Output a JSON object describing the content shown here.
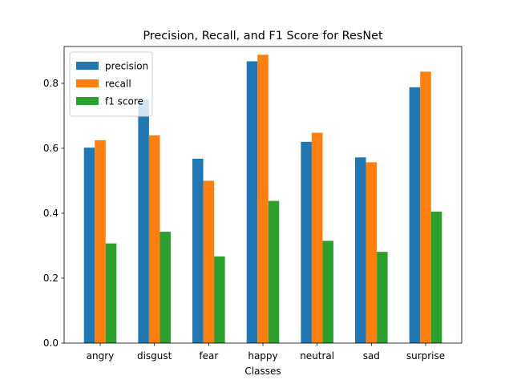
{
  "chart_data": {
    "type": "bar",
    "title": "Precision, Recall, and F1 Score for ResNet",
    "xlabel": "Classes",
    "ylabel": "",
    "categories": [
      "angry",
      "disgust",
      "fear",
      "happy",
      "neutral",
      "sad",
      "surprise"
    ],
    "series": [
      {
        "name": "precision",
        "color": "#1f77b4",
        "values": [
          0.602,
          0.75,
          0.568,
          0.868,
          0.62,
          0.572,
          0.788
        ]
      },
      {
        "name": "recall",
        "color": "#ff7f0e",
        "values": [
          0.625,
          0.64,
          0.5,
          0.888,
          0.648,
          0.557,
          0.836
        ]
      },
      {
        "name": "f1 score",
        "color": "#2ca02c",
        "values": [
          0.307,
          0.343,
          0.267,
          0.438,
          0.315,
          0.281,
          0.405
        ]
      }
    ],
    "ylim": [
      0,
      0.9135
    ],
    "yticks": [
      0.0,
      0.2,
      0.4,
      0.6,
      0.8
    ],
    "ytick_labels": [
      "0.0",
      "0.2",
      "0.4",
      "0.6",
      "0.8"
    ],
    "legend_position": "top-left",
    "grid": false
  }
}
